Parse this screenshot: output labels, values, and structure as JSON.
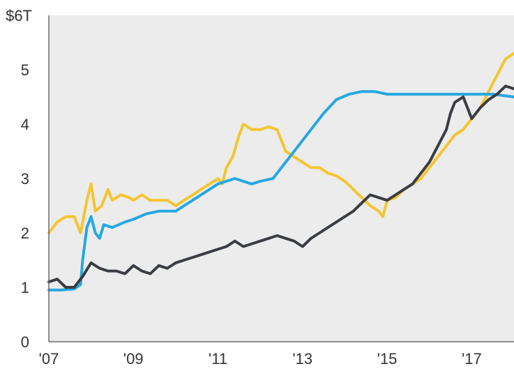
{
  "chart_data": {
    "type": "line",
    "title": "",
    "xlabel": "",
    "ylabel": "",
    "x_ticks": [
      "'07",
      "'09",
      "'11",
      "'13",
      "'15",
      "'17"
    ],
    "y_ticks": [
      "0",
      "1",
      "2",
      "3",
      "4",
      "5",
      "$6T"
    ],
    "xlim": [
      2007.0,
      2018.0
    ],
    "ylim": [
      0,
      6
    ],
    "grid": false,
    "background": "#ececec",
    "series": [
      {
        "color": "#f5c531",
        "x": [
          2007.0,
          2007.2,
          2007.4,
          2007.6,
          2007.75,
          2007.9,
          2008.0,
          2008.1,
          2008.25,
          2008.4,
          2008.5,
          2008.7,
          2008.9,
          2009.0,
          2009.2,
          2009.4,
          2009.6,
          2009.8,
          2010.0,
          2010.2,
          2010.4,
          2010.6,
          2010.8,
          2011.0,
          2011.1,
          2011.2,
          2011.35,
          2011.5,
          2011.6,
          2011.8,
          2012.0,
          2012.2,
          2012.4,
          2012.6,
          2012.8,
          2013.0,
          2013.2,
          2013.4,
          2013.6,
          2013.8,
          2014.0,
          2014.2,
          2014.4,
          2014.6,
          2014.8,
          2014.9,
          2015.0,
          2015.2,
          2015.4,
          2015.6,
          2015.8,
          2016.0,
          2016.2,
          2016.4,
          2016.6,
          2016.8,
          2017.0,
          2017.2,
          2017.4,
          2017.6,
          2017.8,
          2018.0
        ],
        "values": [
          2.0,
          2.2,
          2.3,
          2.3,
          2.0,
          2.6,
          2.9,
          2.4,
          2.5,
          2.8,
          2.6,
          2.7,
          2.65,
          2.6,
          2.7,
          2.6,
          2.6,
          2.6,
          2.5,
          2.6,
          2.7,
          2.8,
          2.9,
          3.0,
          2.9,
          3.2,
          3.4,
          3.8,
          4.0,
          3.9,
          3.9,
          3.95,
          3.9,
          3.5,
          3.4,
          3.3,
          3.2,
          3.2,
          3.1,
          3.05,
          2.95,
          2.8,
          2.65,
          2.5,
          2.4,
          2.3,
          2.6,
          2.65,
          2.8,
          2.9,
          3.0,
          3.2,
          3.4,
          3.6,
          3.8,
          3.9,
          4.1,
          4.3,
          4.6,
          4.9,
          5.2,
          5.3
        ]
      },
      {
        "color": "#27a7e0",
        "x": [
          2007.0,
          2007.3,
          2007.6,
          2007.75,
          2007.8,
          2007.9,
          2008.0,
          2008.1,
          2008.2,
          2008.3,
          2008.5,
          2008.8,
          2009.0,
          2009.3,
          2009.6,
          2010.0,
          2010.2,
          2010.4,
          2010.6,
          2010.8,
          2011.0,
          2011.2,
          2011.4,
          2011.6,
          2011.8,
          2012.0,
          2012.3,
          2012.6,
          2012.9,
          2013.2,
          2013.5,
          2013.8,
          2014.1,
          2014.4,
          2014.7,
          2015.0,
          2015.5,
          2016.0,
          2016.5,
          2017.0,
          2017.5,
          2018.0
        ],
        "values": [
          0.95,
          0.95,
          0.97,
          1.05,
          1.5,
          2.1,
          2.3,
          2.0,
          1.9,
          2.15,
          2.1,
          2.2,
          2.25,
          2.35,
          2.4,
          2.4,
          2.5,
          2.6,
          2.7,
          2.8,
          2.9,
          2.95,
          3.0,
          2.95,
          2.9,
          2.95,
          3.0,
          3.3,
          3.6,
          3.9,
          4.2,
          4.45,
          4.55,
          4.6,
          4.6,
          4.55,
          4.55,
          4.55,
          4.55,
          4.55,
          4.55,
          4.5
        ]
      },
      {
        "color": "#3a3d42",
        "x": [
          2007.0,
          2007.2,
          2007.4,
          2007.6,
          2007.8,
          2008.0,
          2008.2,
          2008.4,
          2008.6,
          2008.8,
          2009.0,
          2009.2,
          2009.4,
          2009.6,
          2009.8,
          2010.0,
          2010.2,
          2010.4,
          2010.6,
          2010.8,
          2011.0,
          2011.2,
          2011.4,
          2011.6,
          2011.8,
          2012.0,
          2012.2,
          2012.4,
          2012.6,
          2012.8,
          2013.0,
          2013.2,
          2013.4,
          2013.6,
          2013.8,
          2014.0,
          2014.2,
          2014.4,
          2014.6,
          2014.8,
          2015.0,
          2015.2,
          2015.4,
          2015.6,
          2015.8,
          2016.0,
          2016.2,
          2016.4,
          2016.5,
          2016.6,
          2016.8,
          2016.9,
          2017.0,
          2017.2,
          2017.4,
          2017.6,
          2017.8,
          2018.0
        ],
        "values": [
          1.1,
          1.15,
          1.0,
          1.0,
          1.2,
          1.45,
          1.35,
          1.3,
          1.3,
          1.25,
          1.4,
          1.3,
          1.25,
          1.4,
          1.35,
          1.45,
          1.5,
          1.55,
          1.6,
          1.65,
          1.7,
          1.75,
          1.85,
          1.75,
          1.8,
          1.85,
          1.9,
          1.95,
          1.9,
          1.85,
          1.75,
          1.9,
          2.0,
          2.1,
          2.2,
          2.3,
          2.4,
          2.55,
          2.7,
          2.65,
          2.6,
          2.7,
          2.8,
          2.9,
          3.1,
          3.3,
          3.6,
          3.9,
          4.2,
          4.4,
          4.5,
          4.3,
          4.1,
          4.3,
          4.45,
          4.55,
          4.7,
          4.65
        ]
      }
    ]
  }
}
